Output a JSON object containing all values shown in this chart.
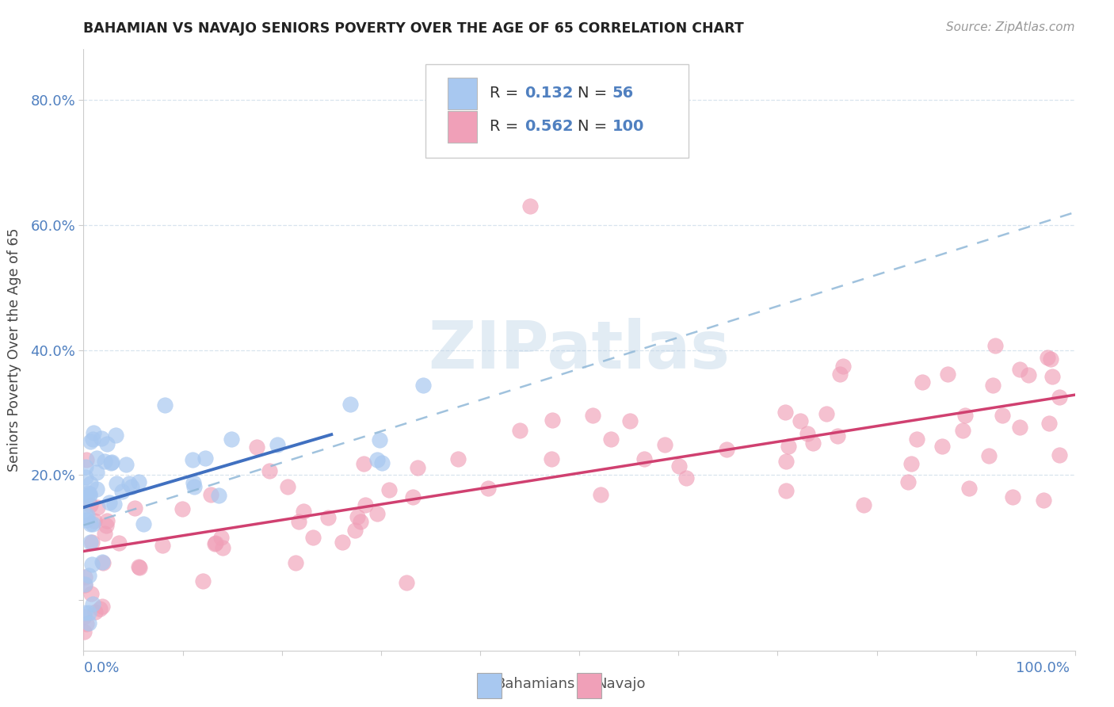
{
  "title": "BAHAMIAN VS NAVAJO SENIORS POVERTY OVER THE AGE OF 65 CORRELATION CHART",
  "source": "Source: ZipAtlas.com",
  "ylabel": "Seniors Poverty Over the Age of 65",
  "xlim": [
    0.0,
    1.0
  ],
  "ylim": [
    -0.08,
    0.88
  ],
  "bahamian_R": 0.132,
  "bahamian_N": 56,
  "navajo_R": 0.562,
  "navajo_N": 100,
  "bahamian_color": "#a8c8f0",
  "navajo_color": "#f0a0b8",
  "bahamian_line_color": "#4070c0",
  "navajo_line_color": "#d04070",
  "dash_line_color": "#90b8d8",
  "watermark": "ZIPatlas",
  "grid_color": "#d8e4ee",
  "ytick_vals": [
    0.0,
    0.2,
    0.4,
    0.6,
    0.8
  ],
  "ytick_labels": [
    "",
    "20.0%",
    "40.0%",
    "60.0%",
    "80.0%"
  ],
  "tick_color": "#5080c0"
}
